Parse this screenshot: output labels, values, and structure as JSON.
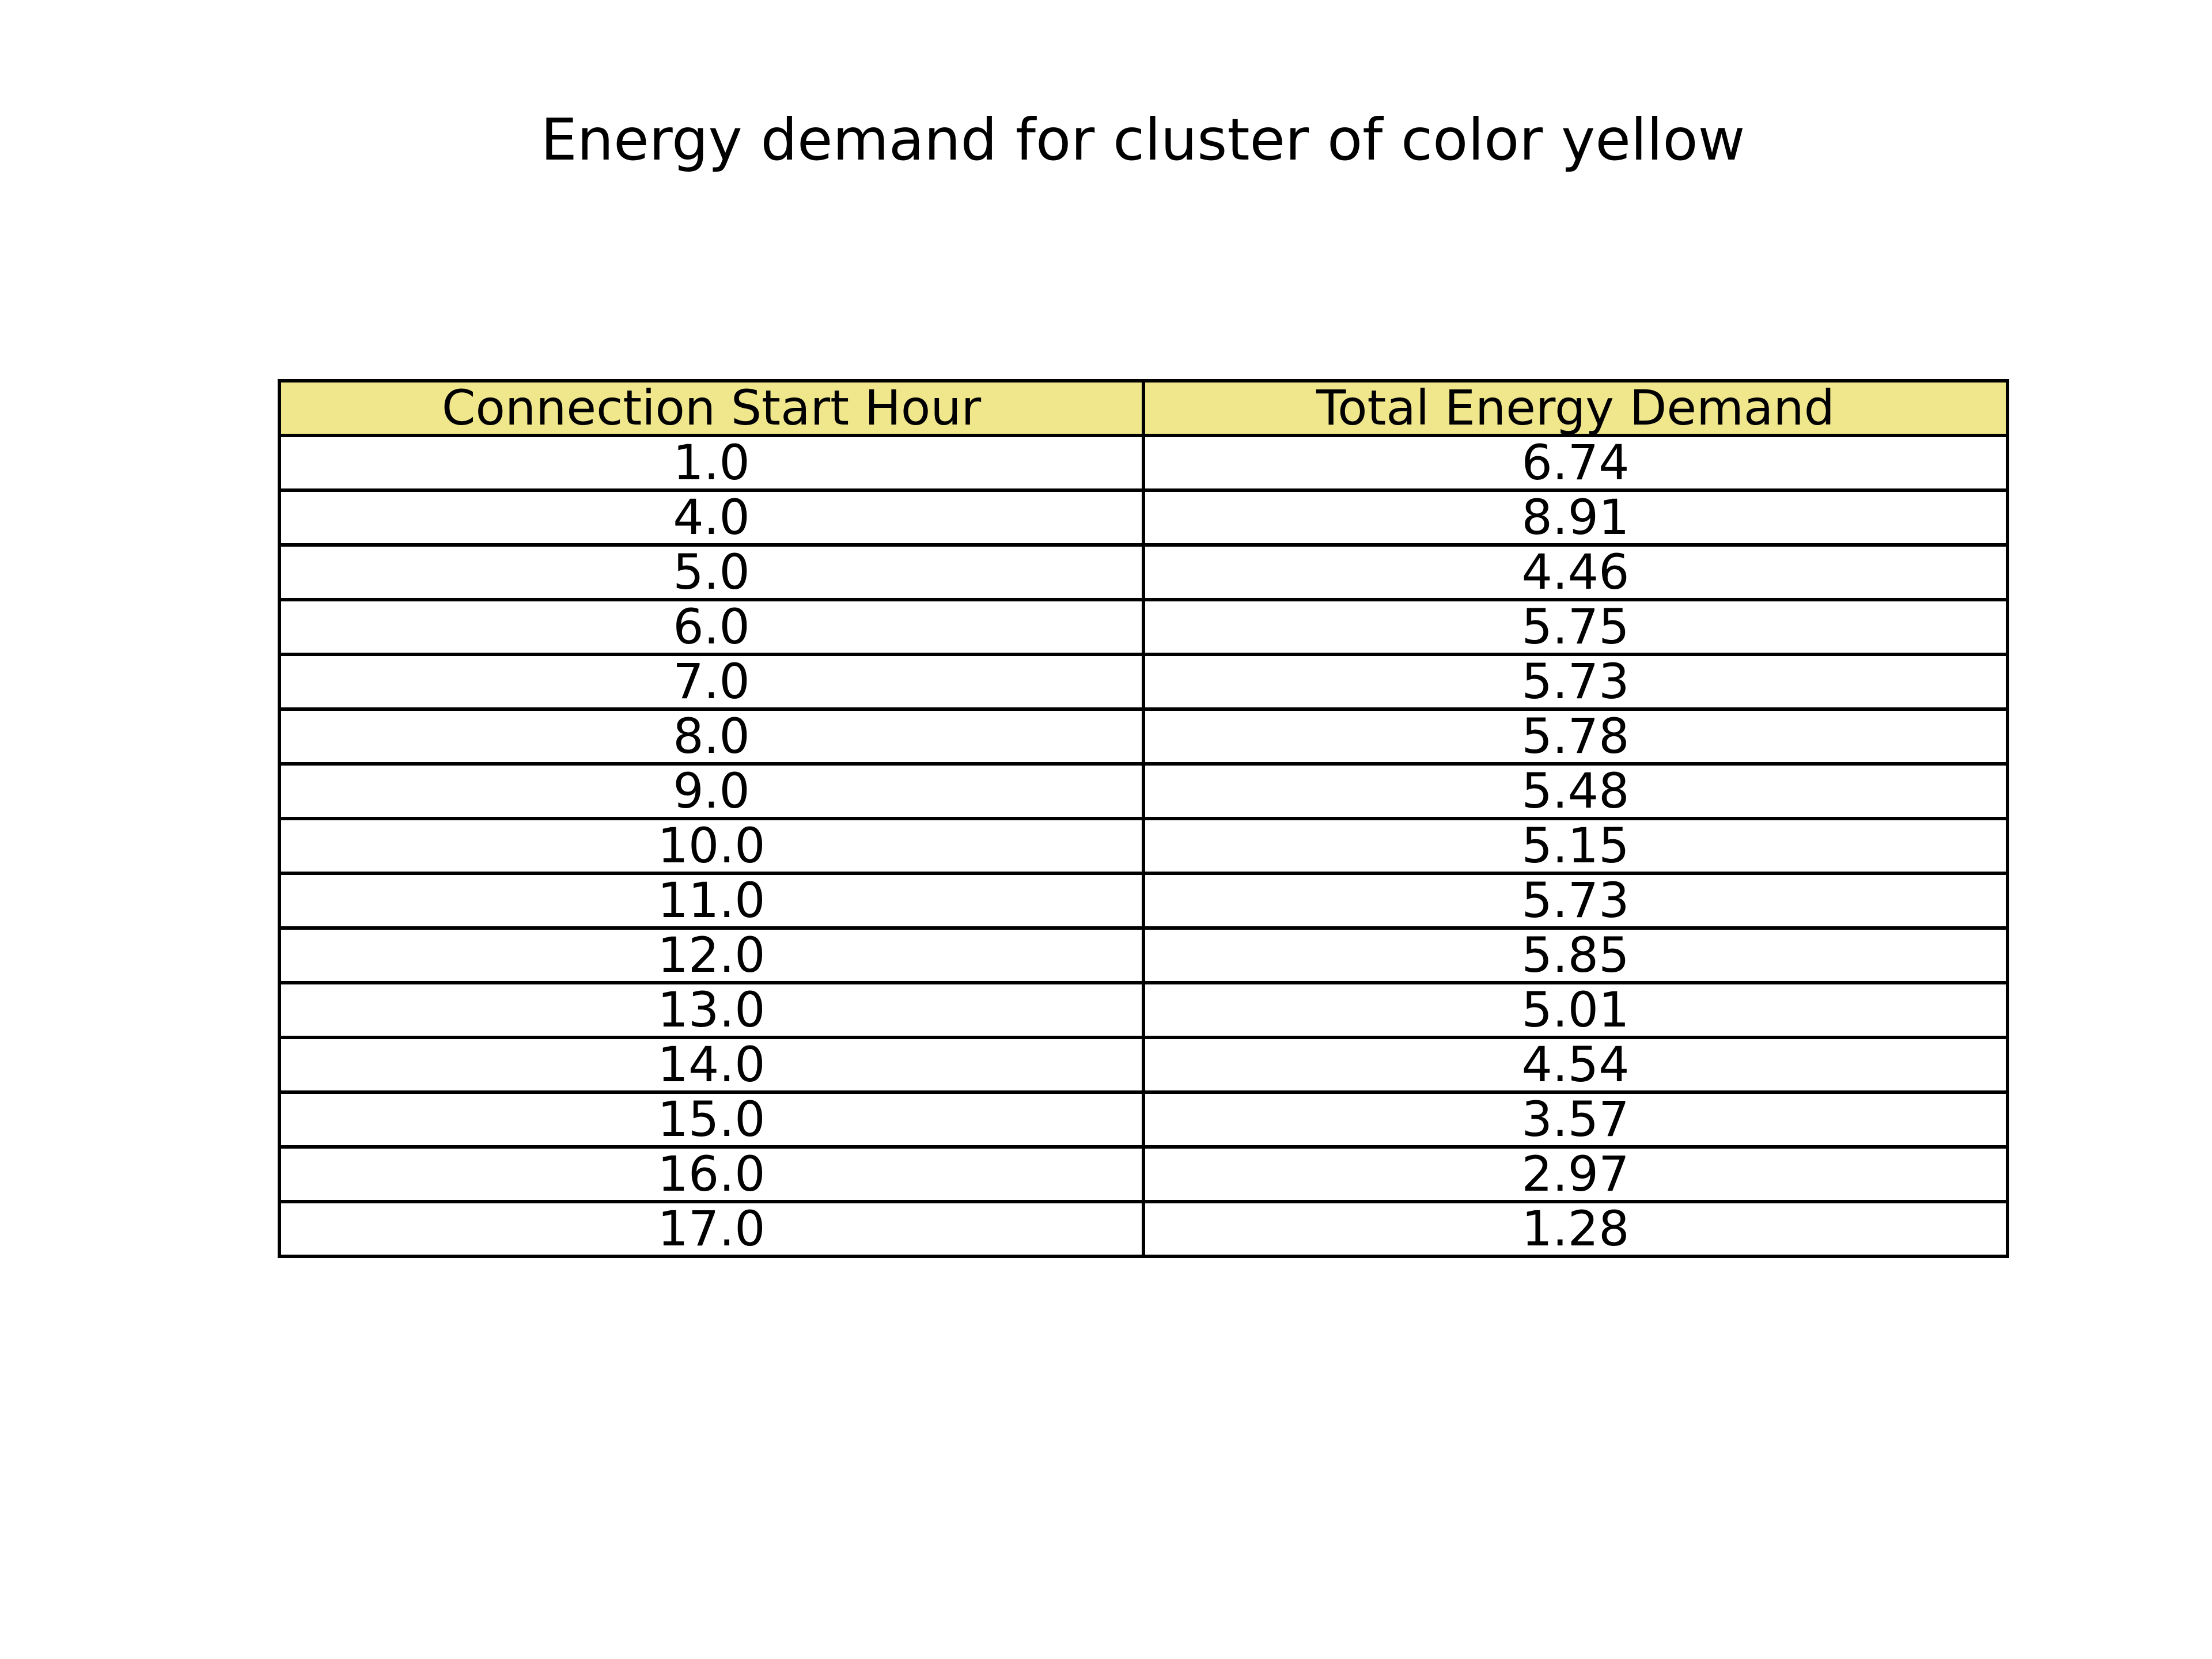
{
  "chart_data": {
    "type": "table",
    "title": "Energy demand for cluster of color yellow",
    "header_color": "#f0e68c",
    "columns": [
      "Connection Start Hour",
      "Total Energy Demand"
    ],
    "rows": [
      [
        "1.0",
        "6.74"
      ],
      [
        "4.0",
        "8.91"
      ],
      [
        "5.0",
        "4.46"
      ],
      [
        "6.0",
        "5.75"
      ],
      [
        "7.0",
        "5.73"
      ],
      [
        "8.0",
        "5.78"
      ],
      [
        "9.0",
        "5.48"
      ],
      [
        "10.0",
        "5.15"
      ],
      [
        "11.0",
        "5.73"
      ],
      [
        "12.0",
        "5.85"
      ],
      [
        "13.0",
        "5.01"
      ],
      [
        "14.0",
        "4.54"
      ],
      [
        "15.0",
        "3.57"
      ],
      [
        "16.0",
        "2.97"
      ],
      [
        "17.0",
        "1.28"
      ]
    ]
  }
}
